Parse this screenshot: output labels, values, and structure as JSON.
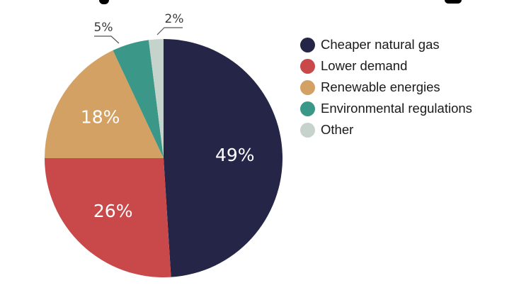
{
  "chart_data": {
    "type": "pie",
    "title": "",
    "start_angle_deg": 0,
    "direction": "clockwise",
    "slices": [
      {
        "name": "Cheaper natural gas",
        "value": 49,
        "label": "49%",
        "color": "#252647",
        "label_position": "inside"
      },
      {
        "name": "Lower demand",
        "value": 26,
        "label": "26%",
        "color": "#C9494B",
        "label_position": "inside"
      },
      {
        "name": "Renewable energies",
        "value": 18,
        "label": "18%",
        "color": "#D4A164",
        "label_position": "inside"
      },
      {
        "name": "Environmental regulations",
        "value": 5,
        "label": "5%",
        "color": "#3B9888",
        "label_position": "outside"
      },
      {
        "name": "Other",
        "value": 2,
        "label": "2%",
        "color": "#C6D3CD",
        "label_position": "outside"
      }
    ],
    "legend": {
      "placement": "right",
      "entries": [
        "Cheaper natural gas",
        "Lower demand",
        "Renewable energies",
        "Environmental regulations",
        "Other"
      ]
    }
  }
}
